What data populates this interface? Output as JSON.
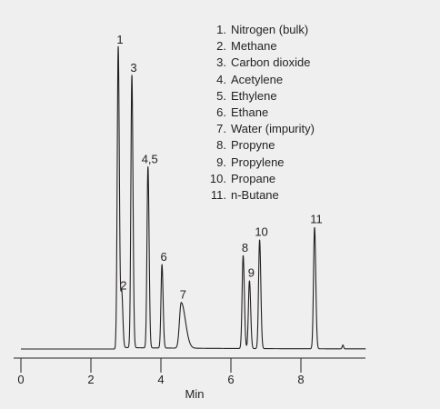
{
  "chart_data": {
    "type": "line",
    "title": "",
    "xlabel": "Min",
    "ylabel": "",
    "xlim": [
      0,
      10
    ],
    "x_ticks": [
      "0",
      "2",
      "4",
      "6",
      "8"
    ],
    "grid": false,
    "y_axis_shown": false,
    "baseline": 4.5,
    "ylim": [
      0,
      100
    ],
    "series": [
      {
        "peaks": [
          {
            "label": "1",
            "rt": 2.78,
            "height": 100
          },
          {
            "label": "2",
            "rt": 2.88,
            "height": 22
          },
          {
            "label": "3",
            "rt": 3.17,
            "height": 91
          },
          {
            "label": "4,5",
            "rt": 3.63,
            "height": 62
          },
          {
            "label": "6",
            "rt": 4.03,
            "height": 31
          },
          {
            "label": "7",
            "rt": 4.58,
            "height": 19
          },
          {
            "label": "8",
            "rt": 6.35,
            "height": 34
          },
          {
            "label": "9",
            "rt": 6.53,
            "height": 26
          },
          {
            "label": "10",
            "rt": 6.82,
            "height": 39
          },
          {
            "label": "11",
            "rt": 8.39,
            "height": 43
          }
        ]
      }
    ],
    "legend": [
      {
        "num": "1.",
        "name": "Nitrogen (bulk)"
      },
      {
        "num": "2.",
        "name": "Methane"
      },
      {
        "num": "3.",
        "name": "Carbon dioxide"
      },
      {
        "num": "4.",
        "name": "Acetylene"
      },
      {
        "num": "5.",
        "name": "Ethylene"
      },
      {
        "num": "6.",
        "name": "Ethane"
      },
      {
        "num": "7.",
        "name": "Water (impurity)"
      },
      {
        "num": "8.",
        "name": "Propyne"
      },
      {
        "num": "9.",
        "name": "Propylene"
      },
      {
        "num": "10.",
        "name": "Propane"
      },
      {
        "num": "11.",
        "name": "n-Butane"
      }
    ],
    "legend_position": "top-right",
    "colors": {
      "background": "#efefef",
      "trace": "#231f20"
    }
  }
}
